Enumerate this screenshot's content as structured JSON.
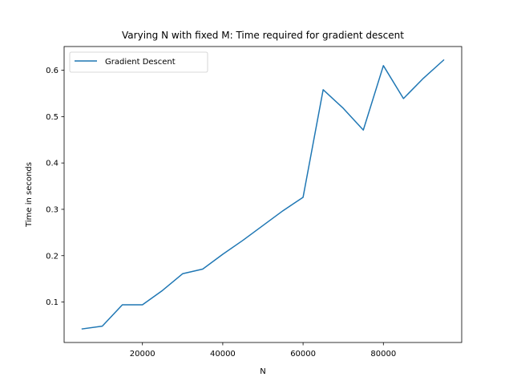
{
  "chart_data": {
    "type": "line",
    "title": "Varying N with fixed M: Time required for gradient descent",
    "xlabel": "N",
    "ylabel": "Time in seconds",
    "xlim": [
      500,
      99500
    ],
    "ylim": [
      0.0127,
      0.6512
    ],
    "xticks": [
      20000,
      40000,
      60000,
      80000
    ],
    "xtick_labels": [
      "20000",
      "40000",
      "60000",
      "80000"
    ],
    "yticks": [
      0.1,
      0.2,
      0.3,
      0.4,
      0.5,
      0.6
    ],
    "ytick_labels": [
      "0.1",
      "0.2",
      "0.3",
      "0.4",
      "0.5",
      "0.6"
    ],
    "grid": false,
    "legend_position": "top-left",
    "series": [
      {
        "name": "Gradient Descent",
        "color": "#1f77b4",
        "x": [
          5000,
          10000,
          15000,
          20000,
          25000,
          30000,
          35000,
          40000,
          45000,
          50000,
          55000,
          60000,
          65000,
          70000,
          75000,
          80000,
          85000,
          90000,
          95000
        ],
        "y": [
          0.042,
          0.048,
          0.094,
          0.094,
          0.125,
          0.161,
          0.171,
          0.203,
          0.233,
          0.265,
          0.297,
          0.326,
          0.558,
          0.518,
          0.471,
          0.61,
          0.539,
          0.583,
          0.622
        ]
      }
    ]
  }
}
